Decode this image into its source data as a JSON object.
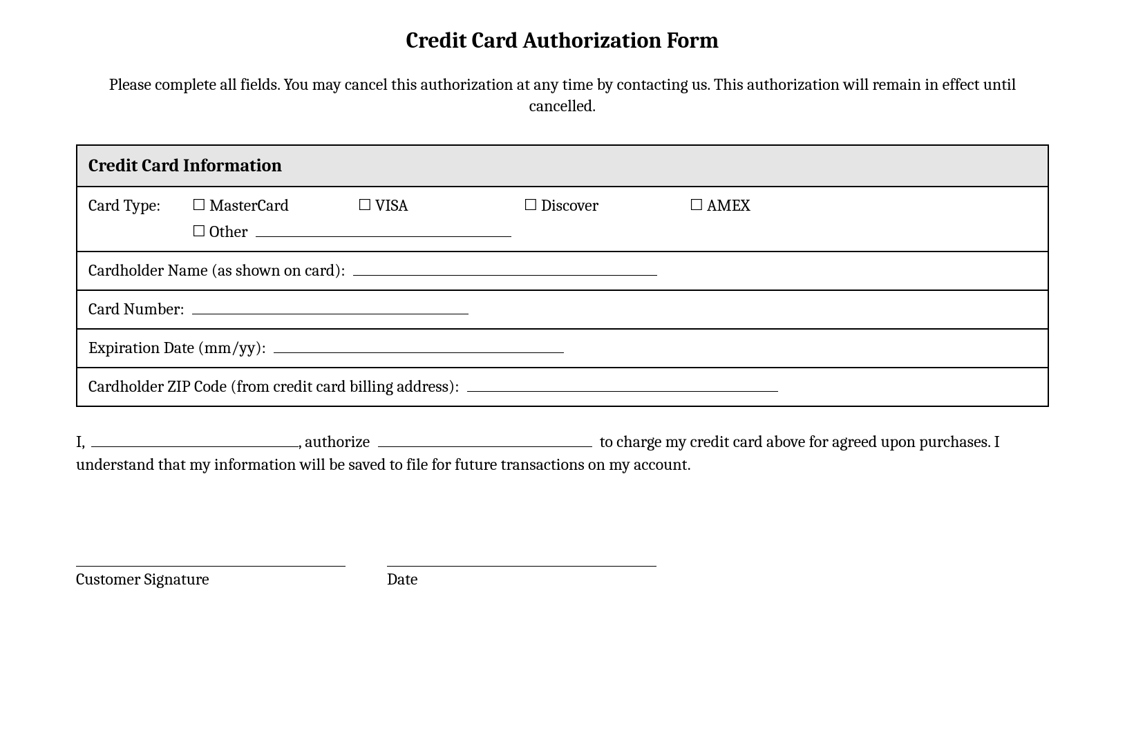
{
  "title": "Credit Card Authorization Form",
  "intro": "Please complete all fields. You may cancel this authorization at any time by contacting us. This authorization will remain in effect until cancelled.",
  "section_header": "Credit Card Information",
  "cardtype_label": "Card Type:",
  "checkbox_glyph": "☐",
  "card_options": {
    "mastercard": "MasterCard",
    "visa": "VISA",
    "discover": "Discover",
    "amex": "AMEX",
    "other": "Other"
  },
  "field_labels": {
    "cardholder_name": "Cardholder Name (as shown on card):",
    "card_number": "Card Number:",
    "expiration": "Expiration Date (mm/yy):",
    "zip": "Cardholder ZIP Code (from credit card billing address):"
  },
  "line_widths": {
    "cardholder_name": 440,
    "card_number": 400,
    "expiration": 420,
    "zip": 450,
    "auth_name": 300,
    "auth_merchant": 310
  },
  "auth": {
    "prefix": "I,",
    "mid1": ", authorize",
    "mid2": "to charge my credit card above for agreed upon purchases. I understand that my information will be saved to file for future transactions on my account."
  },
  "signature": {
    "customer_label": "Customer Signature",
    "date_label": "Date",
    "customer_width": 390,
    "date_width": 390
  },
  "colors": {
    "header_bg": "#e5e5e5",
    "border": "#000000",
    "text": "#000000",
    "background": "#ffffff"
  }
}
